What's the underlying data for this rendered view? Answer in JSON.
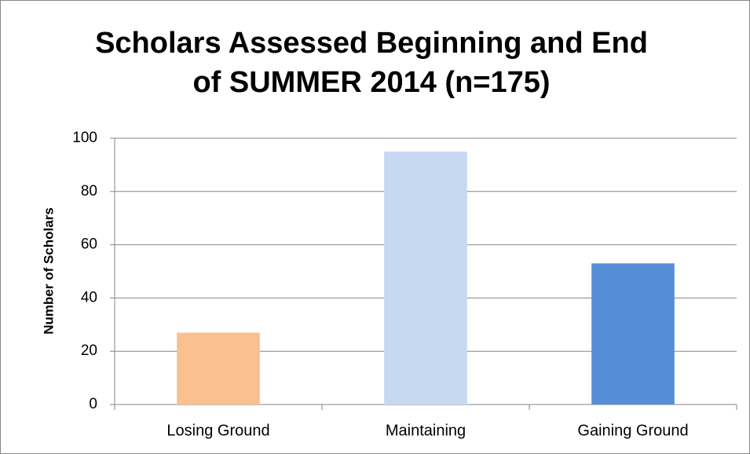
{
  "chart_data": {
    "type": "bar",
    "title": [
      "Scholars Assessed Beginning and End",
      "of SUMMER 2014 (n=175)"
    ],
    "y_label": "Number of Scholars",
    "categories": [
      "Losing Ground",
      "Maintaining",
      "Gaining Ground"
    ],
    "values": [
      27,
      95,
      53
    ],
    "colors": [
      "#fac090",
      "#c6d9f1",
      "#558ed5"
    ],
    "ylim": [
      0,
      100
    ],
    "yticks": [
      0,
      20,
      40,
      60,
      80,
      100
    ],
    "grid": true
  }
}
